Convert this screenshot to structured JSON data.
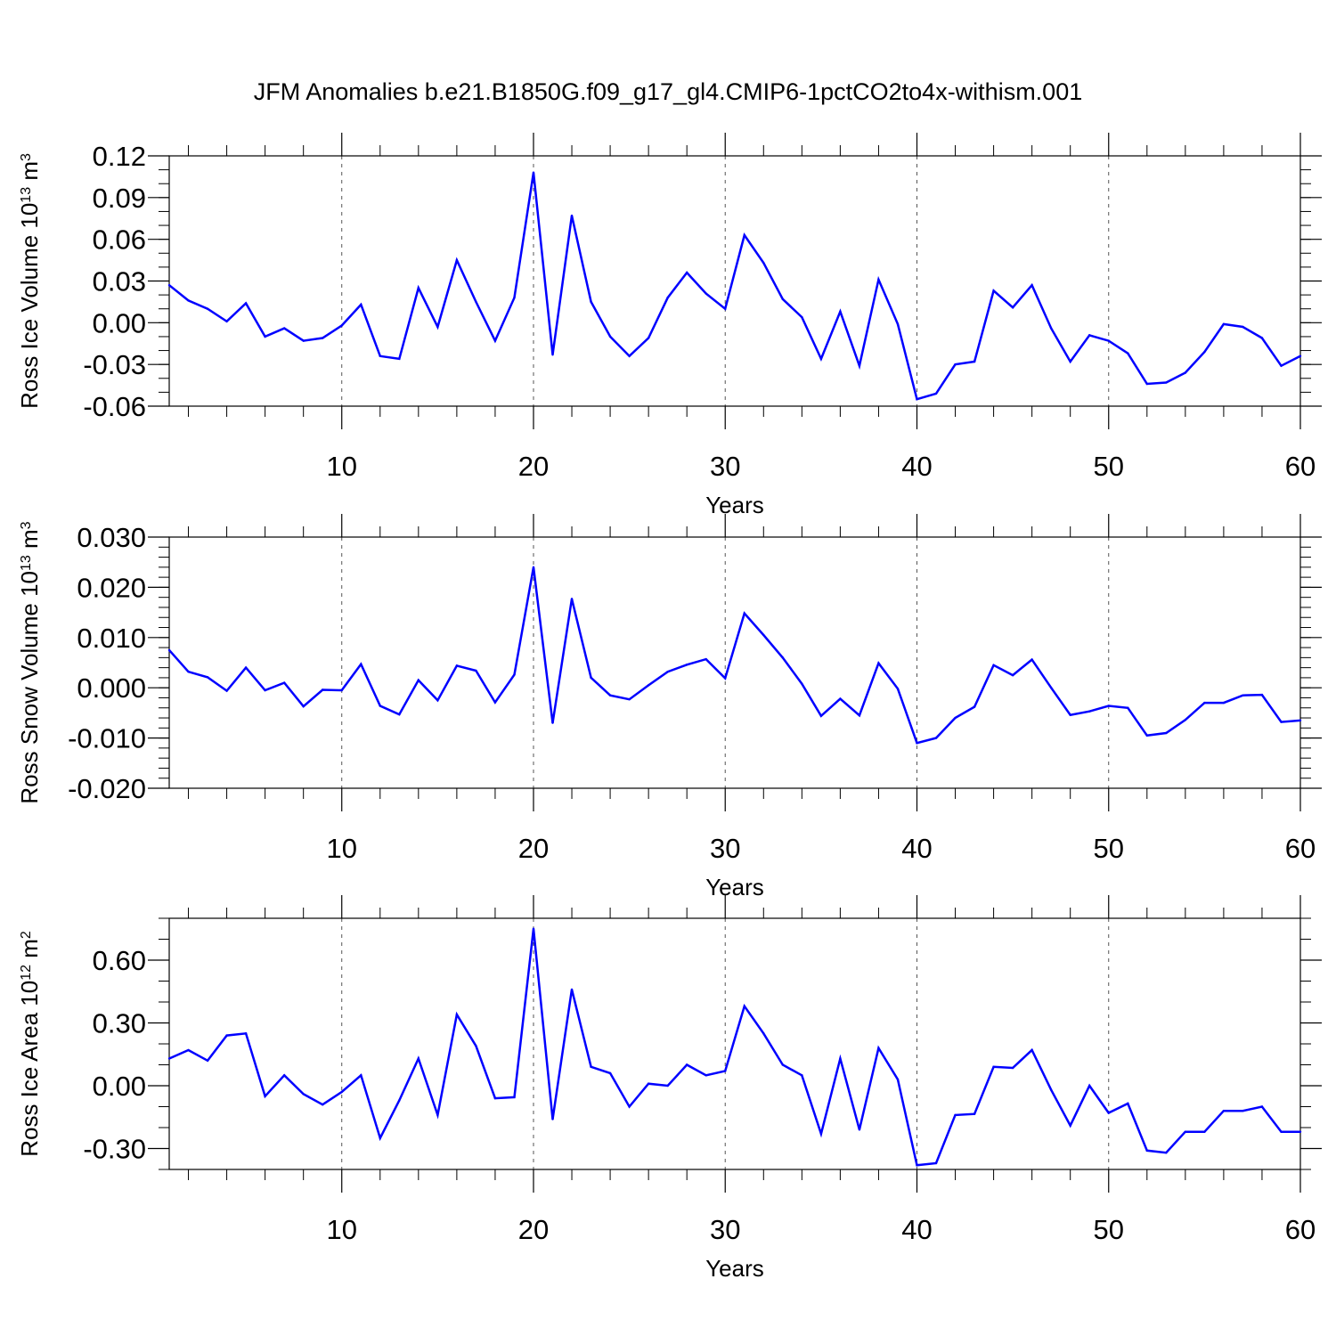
{
  "title": "JFM Anomalies b.e21.B1850G.f09_g17_gl4.CMIP6-1pctCO2to4x-withism.001",
  "colors": {
    "line": "#0000ff",
    "axis": "#000000",
    "grid": "#555555"
  },
  "chart_data": [
    {
      "type": "line",
      "ylabel_main": "Ross Ice Volume 10",
      "ylabel_exp": "13",
      "ylabel_unit": " m",
      "ylabel_unit_exp": "3",
      "xlabel": "Years",
      "xlim": [
        1,
        60
      ],
      "ylim": [
        -0.06,
        0.12
      ],
      "yticks": [
        -0.06,
        -0.03,
        0.0,
        0.03,
        0.06,
        0.09,
        0.12
      ],
      "ytick_labels": [
        "-0.06",
        "-0.03",
        "0.00",
        "0.03",
        "0.06",
        "0.09",
        "0.12"
      ],
      "yminor_step": 0.01,
      "xticks": [
        10,
        20,
        30,
        40,
        50,
        60
      ],
      "xtick_labels": [
        "10",
        "20",
        "30",
        "40",
        "50",
        "60"
      ],
      "grid_x": [
        10,
        20,
        30,
        40,
        50
      ],
      "x": [
        1,
        2,
        3,
        4,
        5,
        6,
        7,
        8,
        9,
        10,
        11,
        12,
        13,
        14,
        15,
        16,
        17,
        18,
        19,
        20,
        21,
        22,
        23,
        24,
        25,
        26,
        27,
        28,
        29,
        30,
        31,
        32,
        33,
        34,
        35,
        36,
        37,
        38,
        39,
        40,
        41,
        42,
        43,
        44,
        45,
        46,
        47,
        48,
        49,
        50,
        51,
        52,
        53,
        54,
        55,
        56,
        57,
        58,
        59,
        60
      ],
      "values": [
        0.027,
        0.016,
        0.01,
        0.001,
        0.014,
        -0.01,
        -0.004,
        -0.013,
        -0.011,
        -0.002,
        0.013,
        -0.024,
        -0.026,
        0.025,
        -0.003,
        0.045,
        0.015,
        -0.013,
        0.018,
        0.108,
        -0.023,
        0.077,
        0.015,
        -0.01,
        -0.024,
        -0.011,
        0.018,
        0.036,
        0.021,
        0.01,
        0.063,
        0.043,
        0.017,
        0.004,
        -0.026,
        0.008,
        -0.031,
        0.031,
        -0.001,
        -0.055,
        -0.051,
        -0.03,
        -0.028,
        0.023,
        0.011,
        0.027,
        -0.004,
        -0.028,
        -0.009,
        -0.013,
        -0.022,
        -0.044,
        -0.043,
        -0.036,
        -0.021,
        -0.001,
        -0.003,
        -0.011,
        -0.031,
        -0.024
      ]
    },
    {
      "type": "line",
      "ylabel_main": "Ross Snow Volume 10",
      "ylabel_exp": "13",
      "ylabel_unit": " m",
      "ylabel_unit_exp": "3",
      "xlabel": "Years",
      "xlim": [
        1,
        60
      ],
      "ylim": [
        -0.02,
        0.03
      ],
      "yticks": [
        -0.02,
        -0.01,
        0.0,
        0.01,
        0.02,
        0.03
      ],
      "ytick_labels": [
        "-0.020",
        "-0.010",
        "0.000",
        "0.010",
        "0.020",
        "0.030"
      ],
      "yminor_step": 0.002,
      "xticks": [
        10,
        20,
        30,
        40,
        50,
        60
      ],
      "xtick_labels": [
        "10",
        "20",
        "30",
        "40",
        "50",
        "60"
      ],
      "grid_x": [
        10,
        20,
        30,
        40,
        50
      ],
      "x": [
        1,
        2,
        3,
        4,
        5,
        6,
        7,
        8,
        9,
        10,
        11,
        12,
        13,
        14,
        15,
        16,
        17,
        18,
        19,
        20,
        21,
        22,
        23,
        24,
        25,
        26,
        27,
        28,
        29,
        30,
        31,
        32,
        33,
        34,
        35,
        36,
        37,
        38,
        39,
        40,
        41,
        42,
        43,
        44,
        45,
        46,
        47,
        48,
        49,
        50,
        51,
        52,
        53,
        54,
        55,
        56,
        57,
        58,
        59,
        60
      ],
      "values": [
        0.0075,
        0.0032,
        0.0021,
        -0.0006,
        0.004,
        -0.0005,
        0.001,
        -0.0037,
        -0.0004,
        -0.0005,
        0.0047,
        -0.0036,
        -0.0053,
        0.0015,
        -0.0025,
        0.0044,
        0.0034,
        -0.0029,
        0.0026,
        0.024,
        -0.007,
        0.0177,
        0.002,
        -0.0015,
        -0.0023,
        0.0005,
        0.0032,
        0.0046,
        0.0057,
        0.0019,
        0.0148,
        0.0105,
        0.006,
        0.0008,
        -0.0056,
        -0.0022,
        -0.0055,
        0.0049,
        -0.0002,
        -0.011,
        -0.01,
        -0.006,
        -0.0038,
        0.0045,
        0.0025,
        0.0056,
        0.0,
        -0.0054,
        -0.0047,
        -0.0036,
        -0.004,
        -0.0095,
        -0.009,
        -0.0064,
        -0.003,
        -0.003,
        -0.0015,
        -0.0014,
        -0.0068,
        -0.0065
      ]
    },
    {
      "type": "line",
      "ylabel_main": "Ross Ice Area 10",
      "ylabel_exp": "12",
      "ylabel_unit": " m",
      "ylabel_unit_exp": "2",
      "xlabel": "Years",
      "xlim": [
        1,
        60
      ],
      "ylim": [
        -0.4,
        0.8
      ],
      "yticks": [
        -0.3,
        0.0,
        0.3,
        0.6
      ],
      "ytick_labels": [
        "-0.30",
        "0.00",
        "0.30",
        "0.60"
      ],
      "yminor_step": 0.1,
      "xticks": [
        10,
        20,
        30,
        40,
        50,
        60
      ],
      "xtick_labels": [
        "10",
        "20",
        "30",
        "40",
        "50",
        "60"
      ],
      "grid_x": [
        10,
        20,
        30,
        40,
        50
      ],
      "x": [
        1,
        2,
        3,
        4,
        5,
        6,
        7,
        8,
        9,
        10,
        11,
        12,
        13,
        14,
        15,
        16,
        17,
        18,
        19,
        20,
        21,
        22,
        23,
        24,
        25,
        26,
        27,
        28,
        29,
        30,
        31,
        32,
        33,
        34,
        35,
        36,
        37,
        38,
        39,
        40,
        41,
        42,
        43,
        44,
        45,
        46,
        47,
        48,
        49,
        50,
        51,
        52,
        53,
        54,
        55,
        56,
        57,
        58,
        59,
        60
      ],
      "values": [
        0.13,
        0.17,
        0.12,
        0.24,
        0.25,
        -0.05,
        0.05,
        -0.04,
        -0.09,
        -0.03,
        0.05,
        -0.25,
        -0.07,
        0.13,
        -0.14,
        0.34,
        0.19,
        -0.06,
        -0.055,
        0.75,
        -0.16,
        0.46,
        0.09,
        0.06,
        -0.1,
        0.01,
        0.0,
        0.1,
        0.05,
        0.07,
        0.38,
        0.25,
        0.1,
        0.05,
        -0.23,
        0.13,
        -0.21,
        0.18,
        0.03,
        -0.38,
        -0.37,
        -0.14,
        -0.135,
        0.09,
        0.085,
        0.17,
        -0.02,
        -0.19,
        0.0,
        -0.13,
        -0.085,
        -0.31,
        -0.32,
        -0.22,
        -0.22,
        -0.12,
        -0.12,
        -0.1,
        -0.22,
        -0.22
      ]
    }
  ]
}
